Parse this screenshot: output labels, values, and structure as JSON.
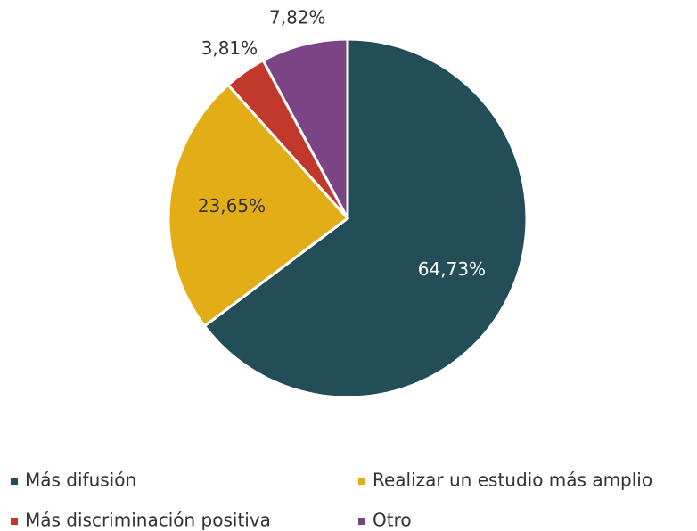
{
  "chart_data": {
    "type": "pie",
    "categories": [
      "Más difusión",
      "Realizar un estudio más amplio",
      "Más discriminación positiva",
      "Otro"
    ],
    "values": [
      64.73,
      23.65,
      3.81,
      7.82
    ],
    "value_labels": [
      "64,73%",
      "23,65%",
      "3,81%",
      "7,82%"
    ],
    "colors": [
      "#234d57",
      "#e3ad17",
      "#c0392b",
      "#7b4585"
    ],
    "legend": "bottom"
  }
}
